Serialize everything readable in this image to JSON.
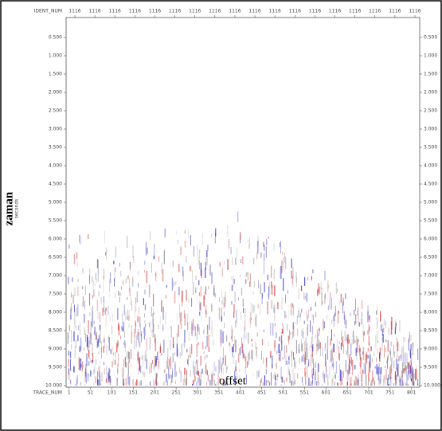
{
  "chart_data": {
    "type": "seismic",
    "top_axis_label": "IDENT_NUM",
    "top_labels": [
      "1116",
      "1116",
      "1116",
      "1116",
      "1116",
      "1116",
      "1116",
      "1116",
      "1116",
      "1116",
      "1116",
      "1116",
      "1116",
      "1116",
      "1116",
      "1116",
      "1116",
      "1116"
    ],
    "x_axis_name": "TRACE_NUM",
    "xlabel": "offset",
    "ylabel": "zaman",
    "ylabel_sub": "seconds",
    "xlim": [
      -6,
      820
    ],
    "xticks": [
      1,
      51,
      101,
      151,
      201,
      251,
      301,
      351,
      401,
      451,
      501,
      551,
      601,
      651,
      701,
      751,
      801
    ],
    "ylim": [
      0,
      10
    ],
    "yticks": [
      {
        "value": 0.5,
        "label": "0.500"
      },
      {
        "value": 1,
        "label": "1.000"
      },
      {
        "value": 1.5,
        "label": "1.500"
      },
      {
        "value": 2,
        "label": "2.000"
      },
      {
        "value": 2.5,
        "label": "2.500"
      },
      {
        "value": 3,
        "label": "3.000"
      },
      {
        "value": 3.5,
        "label": "3.500"
      },
      {
        "value": 4,
        "label": "4.000"
      },
      {
        "value": 4.5,
        "label": "4.500"
      },
      {
        "value": 5,
        "label": "5.000"
      },
      {
        "value": 5.5,
        "label": "5.500"
      },
      {
        "value": 6,
        "label": "6.000"
      },
      {
        "value": 6.5,
        "label": "6.500"
      },
      {
        "value": 7,
        "label": "7.000"
      },
      {
        "value": 7.5,
        "label": "7.500"
      },
      {
        "value": 8,
        "label": "8.000"
      },
      {
        "value": 8.5,
        "label": "8.500"
      },
      {
        "value": 9,
        "label": "9.000"
      },
      {
        "value": 9.5,
        "label": "9.500"
      },
      {
        "value": 10,
        "label": "10.000"
      }
    ],
    "y_inverted": true
  }
}
